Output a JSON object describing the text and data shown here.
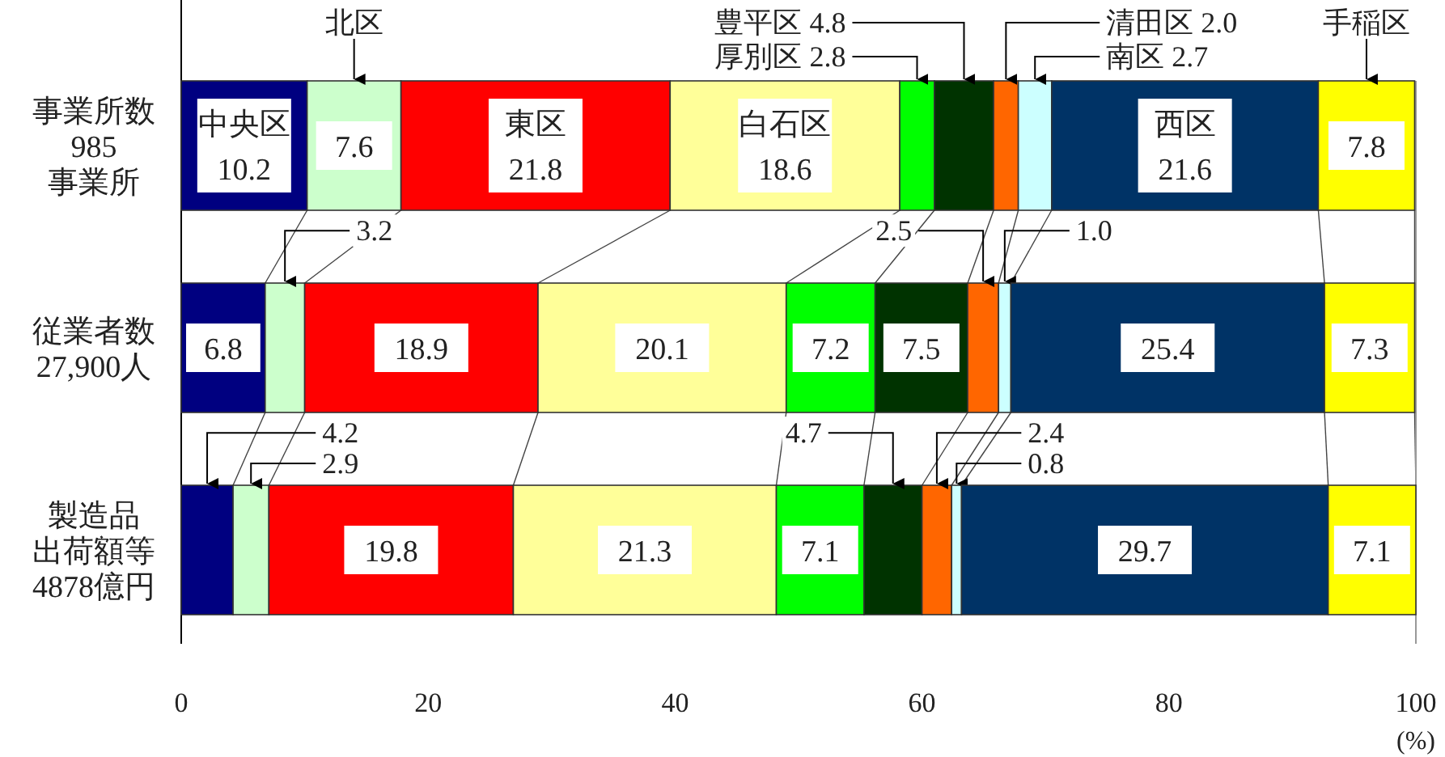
{
  "chart_data": {
    "type": "bar",
    "orientation": "horizontal",
    "stacked": true,
    "data_labels": true,
    "grid": false,
    "categories": [
      "事業所数\n985\n事業所",
      "従業者数\n27,900人",
      "製造品出荷額等\n4878億円"
    ],
    "xlim": [
      0,
      100
    ],
    "xticks": [
      0,
      20,
      40,
      60,
      80,
      100
    ],
    "xlabel": "(%)",
    "series": [
      {
        "name": "中央区",
        "color": "#000080",
        "values": [
          10.2,
          6.8,
          4.2
        ],
        "value_labels": [
          "10.2",
          "6.8",
          "4.2"
        ]
      },
      {
        "name": "北区",
        "color": "#ccffcc",
        "values": [
          7.6,
          3.2,
          2.9
        ],
        "value_labels": [
          "7.6",
          "3.2",
          "2.9"
        ]
      },
      {
        "name": "東区",
        "color": "#ff0000",
        "values": [
          21.8,
          18.9,
          19.8
        ],
        "value_labels": [
          "21.8",
          "18.9",
          "19.8"
        ]
      },
      {
        "name": "白石区",
        "color": "#ffff99",
        "values": [
          18.6,
          20.1,
          21.3
        ],
        "value_labels": [
          "18.6",
          "20.1",
          "21.3"
        ]
      },
      {
        "name": "厚別区",
        "color": "#00ff00",
        "values": [
          2.8,
          7.2,
          7.1
        ],
        "value_labels": [
          "2.8",
          "7.2",
          "7.1"
        ]
      },
      {
        "name": "豊平区",
        "color": "#003300",
        "values": [
          4.8,
          7.5,
          4.7
        ],
        "value_labels": [
          "4.8",
          "7.5",
          "4.7"
        ]
      },
      {
        "name": "清田区",
        "color": "#ff6600",
        "values": [
          2.0,
          2.5,
          2.4
        ],
        "value_labels": [
          "2.0",
          "2.5",
          "2.4"
        ]
      },
      {
        "name": "南区",
        "color": "#ccffff",
        "values": [
          2.7,
          1.0,
          0.8
        ],
        "value_labels": [
          "2.7",
          "1.0",
          "0.8"
        ]
      },
      {
        "name": "西区",
        "color": "#003366",
        "values": [
          21.6,
          25.4,
          29.7
        ],
        "value_labels": [
          "21.6",
          "25.4",
          "29.7"
        ]
      },
      {
        "name": "手稲区",
        "color": "#ffff00",
        "values": [
          7.8,
          7.3,
          7.1
        ],
        "value_labels": [
          "7.8",
          "7.3",
          "7.1"
        ]
      }
    ]
  }
}
